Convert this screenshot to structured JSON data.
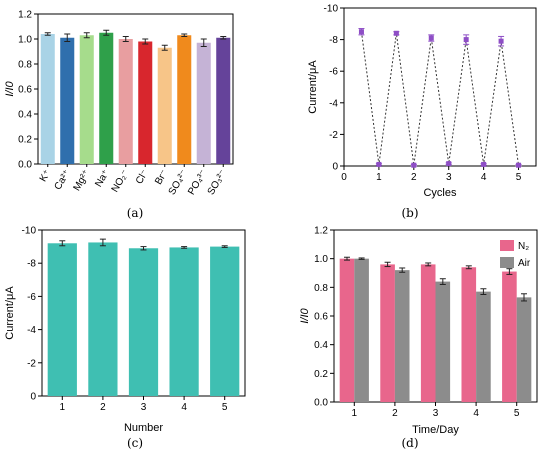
{
  "panel_labels": [
    "(a)",
    "(b)",
    "(c)",
    "(d)"
  ],
  "chart_data": [
    {
      "panel": "(a)",
      "type": "bar",
      "xlabel": "",
      "ylabel": "I/I0",
      "ylim": [
        0.0,
        1.2
      ],
      "yticks": [
        "0.0",
        "0.2",
        "0.4",
        "0.6",
        "0.8",
        "1.0",
        "1.2"
      ],
      "categories": [
        "K⁺",
        "Ca²⁺",
        "Mg²⁺",
        "Na⁺",
        "NO₂⁻",
        "Cl⁻",
        "Br⁻",
        "SO₄²⁻",
        "PO₄³⁻",
        "SO₃²⁻"
      ],
      "values": [
        1.04,
        1.01,
        1.03,
        1.05,
        1.0,
        0.98,
        0.93,
        1.03,
        0.97,
        1.01
      ],
      "errors": [
        0.01,
        0.03,
        0.02,
        0.02,
        0.02,
        0.02,
        0.02,
        0.01,
        0.03,
        0.01
      ],
      "colors": [
        "#a9d3e6",
        "#2f6fad",
        "#a6dc8c",
        "#2fa04a",
        "#e89ea0",
        "#d8262d",
        "#f7c588",
        "#f08a1c",
        "#c5b3d6",
        "#65439a"
      ]
    },
    {
      "panel": "(b)",
      "type": "line",
      "xlabel": "Cycles",
      "ylabel": "Current/μA",
      "xlim": [
        0,
        5.5
      ],
      "ylim": [
        0,
        -10
      ],
      "xticks": [
        "0",
        "1",
        "2",
        "3",
        "4",
        "5"
      ],
      "yticks": [
        "0",
        "-2",
        "-4",
        "-6",
        "-8",
        "-10"
      ],
      "x": [
        0.5,
        1,
        1.5,
        2,
        2.5,
        3,
        3.5,
        4,
        4.5,
        5
      ],
      "y": [
        -8.5,
        -0.1,
        -8.4,
        -0.05,
        -8.1,
        -0.15,
        -8.0,
        -0.1,
        -7.9,
        -0.05
      ],
      "errors": [
        0.2,
        0.05,
        0.1,
        0.05,
        0.2,
        0.05,
        0.3,
        0.05,
        0.3,
        0.05
      ],
      "color": "#8e4ec6"
    },
    {
      "panel": "(c)",
      "type": "bar",
      "xlabel": "Number",
      "ylabel": "Current/μA",
      "ylim": [
        0,
        -10
      ],
      "yticks": [
        "0",
        "-2",
        "-4",
        "-6",
        "-8",
        "-10"
      ],
      "categories": [
        "1",
        "2",
        "3",
        "4",
        "5"
      ],
      "values": [
        -9.2,
        -9.25,
        -8.9,
        -8.95,
        -9.0
      ],
      "errors": [
        0.15,
        0.2,
        0.1,
        0.05,
        0.05
      ],
      "color": "#3fbfb2"
    },
    {
      "panel": "(d)",
      "type": "bar",
      "xlabel": "Time/Day",
      "ylabel": "I/I0",
      "ylim": [
        0.0,
        1.2
      ],
      "yticks": [
        "0.0",
        "0.2",
        "0.4",
        "0.6",
        "0.8",
        "1.0",
        "1.2"
      ],
      "categories": [
        "1",
        "2",
        "3",
        "4",
        "5"
      ],
      "legend_position": "top-right",
      "series": [
        {
          "name": "N₂",
          "values": [
            1.0,
            0.96,
            0.96,
            0.94,
            0.91
          ],
          "errors": [
            0.01,
            0.015,
            0.01,
            0.01,
            0.02
          ],
          "color": "#e8668c"
        },
        {
          "name": "Air",
          "values": [
            1.0,
            0.92,
            0.84,
            0.77,
            0.73
          ],
          "errors": [
            0.005,
            0.015,
            0.02,
            0.02,
            0.025
          ],
          "color": "#8c8c8c"
        }
      ]
    }
  ]
}
